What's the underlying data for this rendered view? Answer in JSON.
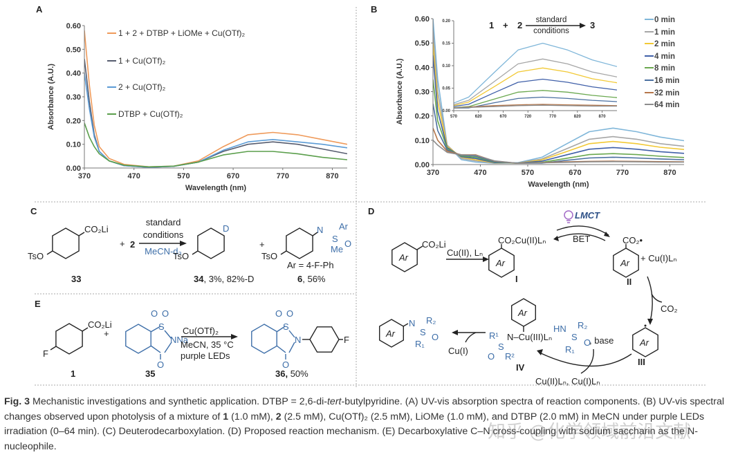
{
  "panels": {
    "a": "A",
    "b": "B",
    "c": "C",
    "d": "D",
    "e": "E"
  },
  "chart_data": [
    {
      "type": "line",
      "panel": "A",
      "xlabel": "Wavelength (nm)",
      "ylabel": "Absorbance (A.U.)",
      "xlim": [
        370,
        900
      ],
      "ylim": [
        0,
        0.6
      ],
      "xticks": [
        370,
        470,
        570,
        670,
        770,
        870
      ],
      "yticks": [
        "0.00",
        "0.10",
        "0.20",
        "0.30",
        "0.40",
        "0.50",
        "0.60"
      ],
      "grid": false,
      "legend_placement": "top-left",
      "x": [
        370,
        380,
        390,
        400,
        420,
        450,
        500,
        550,
        600,
        650,
        700,
        750,
        800,
        850,
        900
      ],
      "series": [
        {
          "name": "1 + 2 + DTBP + LiOMe + Cu(OTf)₂",
          "color": "#ef9a5a",
          "values": [
            0.58,
            0.35,
            0.18,
            0.09,
            0.04,
            0.015,
            0.005,
            0.008,
            0.03,
            0.09,
            0.14,
            0.15,
            0.14,
            0.12,
            0.1
          ]
        },
        {
          "name": "1 + Cu(OTf)₂",
          "color": "#555b6e",
          "values": [
            0.46,
            0.28,
            0.14,
            0.07,
            0.03,
            0.01,
            0.003,
            0.007,
            0.025,
            0.07,
            0.1,
            0.11,
            0.1,
            0.08,
            0.06
          ]
        },
        {
          "name": "2 + Cu(OTf)₂",
          "color": "#5b9bd5",
          "values": [
            0.4,
            0.25,
            0.13,
            0.07,
            0.03,
            0.01,
            0.003,
            0.007,
            0.025,
            0.075,
            0.11,
            0.12,
            0.11,
            0.1,
            0.085
          ]
        },
        {
          "name": "DTBP + Cu(OTf)₂",
          "color": "#5a9e4b",
          "values": [
            0.19,
            0.13,
            0.09,
            0.06,
            0.03,
            0.012,
            0.005,
            0.008,
            0.025,
            0.055,
            0.07,
            0.07,
            0.06,
            0.045,
            0.035
          ]
        }
      ]
    },
    {
      "type": "line",
      "panel": "B",
      "xlabel": "Wavelength (nm)",
      "ylabel": "Absorbance (A.U.)",
      "xlim": [
        370,
        900
      ],
      "ylim": [
        0,
        0.6
      ],
      "xticks": [
        370,
        470,
        570,
        670,
        770,
        870
      ],
      "yticks": [
        "0.00",
        "0.10",
        "0.20",
        "0.30",
        "0.40",
        "0.50",
        "0.60"
      ],
      "grid": false,
      "legend_placement": "right",
      "inset": {
        "xlim": [
          570,
          900
        ],
        "ylim": [
          0,
          0.2
        ],
        "xticks": [
          570,
          620,
          670,
          720,
          770,
          820,
          870
        ],
        "yticks": [
          "0.00",
          "0.05",
          "0.10",
          "0.15",
          "0.20"
        ],
        "reaction": {
          "r1": "1",
          "plus": "+",
          "r2": "2",
          "above": "standard",
          "below": "conditions",
          "product": "3"
        }
      },
      "x": [
        370,
        380,
        400,
        430,
        460,
        500,
        550,
        600,
        650,
        700,
        750,
        800,
        850,
        900
      ],
      "series": [
        {
          "name": "0 min",
          "color": "#7fb6d9",
          "values": [
            0.6,
            0.35,
            0.08,
            0.02,
            0.01,
            0.005,
            0.008,
            0.03,
            0.083,
            0.135,
            0.15,
            0.135,
            0.113,
            0.098
          ]
        },
        {
          "name": "1 min",
          "color": "#a6a6a6",
          "values": [
            0.55,
            0.3,
            0.08,
            0.025,
            0.015,
            0.006,
            0.007,
            0.023,
            0.063,
            0.104,
            0.115,
            0.104,
            0.086,
            0.075
          ]
        },
        {
          "name": "2 min",
          "color": "#f2c935",
          "values": [
            0.5,
            0.26,
            0.075,
            0.03,
            0.02,
            0.007,
            0.006,
            0.019,
            0.052,
            0.086,
            0.095,
            0.086,
            0.071,
            0.062
          ]
        },
        {
          "name": "4 min",
          "color": "#3f5fa8",
          "values": [
            0.45,
            0.22,
            0.07,
            0.032,
            0.025,
            0.008,
            0.006,
            0.014,
            0.039,
            0.063,
            0.07,
            0.063,
            0.053,
            0.046
          ]
        },
        {
          "name": "8 min",
          "color": "#6aa84f",
          "values": [
            0.35,
            0.18,
            0.065,
            0.035,
            0.03,
            0.01,
            0.005,
            0.009,
            0.025,
            0.041,
            0.045,
            0.041,
            0.034,
            0.029
          ]
        },
        {
          "name": "16 min",
          "color": "#4a6fa0",
          "values": [
            0.25,
            0.14,
            0.06,
            0.038,
            0.035,
            0.012,
            0.005,
            0.006,
            0.017,
            0.027,
            0.03,
            0.027,
            0.023,
            0.02
          ]
        },
        {
          "name": "32 min",
          "color": "#b5764a",
          "values": [
            0.15,
            0.1,
            0.055,
            0.04,
            0.04,
            0.014,
            0.005,
            0.008,
            0.011,
            0.013,
            0.014,
            0.013,
            0.012,
            0.011
          ]
        },
        {
          "name": "64 min",
          "color": "#8c8c8c",
          "values": [
            0.1,
            0.08,
            0.05,
            0.04,
            0.038,
            0.015,
            0.005,
            0.007,
            0.009,
            0.011,
            0.012,
            0.011,
            0.01,
            0.01
          ]
        }
      ]
    }
  ],
  "scheme_c": {
    "sm_group": "CO₂Li",
    "sm_oxy": "TsO",
    "sm_label": "33",
    "plus": "+",
    "reagent": "2",
    "cond1": "standard",
    "cond2": "conditions",
    "cond3": "MeCN-d₃",
    "p1_d": "D",
    "p1_oxy": "TsO",
    "p1_label_num": "34",
    "p1_label_rest": ", 3%, 82%-D",
    "plus2": "+",
    "p2_oxy": "TsO",
    "p2_n": "N",
    "p2_s": "S",
    "p2_ar": "Ar",
    "p2_me": "Me",
    "p2_o": "O",
    "p2_def": "Ar = 4-F-Ph",
    "p2_label_num": "6",
    "p2_label_rest": ", 56%"
  },
  "scheme_e": {
    "sm_group": "CO₂Li",
    "sm_f": "F",
    "sm_label": "1",
    "plus": "+",
    "sac_s": "S",
    "sac_o1": "O",
    "sac_o2": "O",
    "sac_n": "NNa",
    "sac_co": "O",
    "sac_label": "35",
    "cond1": "Cu(OTf)₂",
    "cond2": "MeCN, 35 °C",
    "cond3": "purple LEDs",
    "p_s": "S",
    "p_o1": "O",
    "p_o2": "O",
    "p_n": "N",
    "p_co": "O",
    "p_f": "F",
    "p_label_num": "36,",
    "p_label_rest": " 50%"
  },
  "scheme_d": {
    "ar": "Ar",
    "sm_group": "CO₂Li",
    "step1": "Cu(II), Lₙ",
    "int1_group": "CO₂Cu(II)Lₙ",
    "int1_label": "I",
    "lmct": "LMCT",
    "bet": "BET",
    "int2_group": "CO₂•",
    "int2_plus": "+ Cu(I)Lₙ",
    "int2_label": "II",
    "co2": "CO₂",
    "int3_label": "III",
    "reagent_hn": "HN",
    "reagent_s": "S",
    "reagent_r2": "R₂",
    "reagent_r1": "R₁",
    "reagent_o": "O",
    "reagent_base": ", base",
    "cu_species": "Cu(II)Lₙ, Cu(I)Lₙ",
    "int4_r1": "R¹",
    "int4_ncu": "N–Cu(III)Lₙ",
    "int4_s": "S",
    "int4_o": "O",
    "int4_r2": "R²",
    "int4_label": "IV",
    "cu1": "Cu(I)",
    "prod_n": "N",
    "prod_s": "S",
    "prod_r2": "R₂",
    "prod_r1": "R₁",
    "prod_o": "O"
  },
  "caption": {
    "fig": "Fig. 3",
    "text1": "  Mechanistic investigations and synthetic application. DTBP = 2,6-di-",
    "tert": "tert",
    "text2": "-butylpyridine. (A) UV-vis absorption spectra of reaction components. (B) UV-vis spectral changes observed upon photolysis of a mixture of ",
    "c1": "1",
    "text3": " (1.0 mM), ",
    "c2": "2",
    "text4": " (2.5 mM), Cu(OTf)₂ (2.5 mM), LiOMe (1.0 mM), and DTBP (2.0 mM) in MeCN under purple LEDs irradiation (0–64 min). (C) Deuterodecarboxylation. (D) Proposed reaction mechanism. (E) Decarboxylative C–N cross-coupling with sodium saccharin as the N-nucleophile."
  },
  "watermark": "知乎 @化学领域前沿文献"
}
